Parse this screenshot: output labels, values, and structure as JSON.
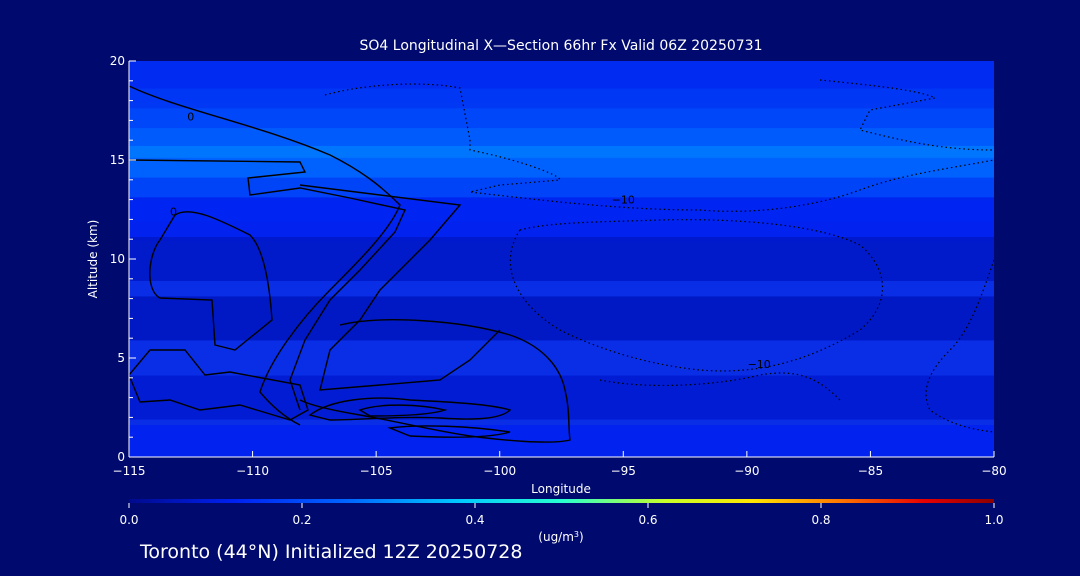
{
  "chart_data": {
    "type": "heatmap",
    "title": "SO4 Longitudinal X—Section 66hr  Fx Valid 06Z 20250731",
    "xlabel": "Longitude",
    "ylabel": "Altitude (km)",
    "xlim": [
      -115,
      -80
    ],
    "ylim": [
      0,
      20
    ],
    "x_ticks": [
      -115,
      -110,
      -105,
      -100,
      -95,
      -90,
      -85,
      -80
    ],
    "x_tick_labels": [
      "−115",
      "−110",
      "−105",
      "−100",
      "−95",
      "−90",
      "−85",
      "−80"
    ],
    "y_ticks": [
      0,
      5,
      10,
      15,
      20
    ],
    "y_tick_labels": [
      "0",
      "5",
      "10",
      "15",
      "20"
    ],
    "colorbar": {
      "min": 0.0,
      "max": 1.0,
      "ticks": [
        0.0,
        0.2,
        0.4,
        0.6,
        0.8,
        1.0
      ],
      "tick_labels": [
        "0.0",
        "0.2",
        "0.4",
        "0.6",
        "0.8",
        "1.0"
      ],
      "unit_label": "(ug/m",
      "unit_superscript": "3",
      "unit_close": ")"
    },
    "layers": [
      {
        "alt": 19.0,
        "value": 0.14
      },
      {
        "alt": 17.5,
        "value": 0.17
      },
      {
        "alt": 16.5,
        "value": 0.2
      },
      {
        "alt": 15.5,
        "value": 0.24
      },
      {
        "alt": 14.6,
        "value": 0.28
      },
      {
        "alt": 14.0,
        "value": 0.24
      },
      {
        "alt": 13.0,
        "value": 0.18
      },
      {
        "alt": 12.0,
        "value": 0.12
      },
      {
        "alt": 10.0,
        "value": 0.07
      },
      {
        "alt": 7.0,
        "value": 0.06
      },
      {
        "alt": 3.0,
        "value": 0.08
      },
      {
        "alt": 0.5,
        "value": 0.12
      }
    ],
    "contour_labels": [
      {
        "text": "0",
        "lon": -112.5,
        "alt": 17.0
      },
      {
        "text": "0",
        "lon": -113.2,
        "alt": 12.2
      },
      {
        "text": "−10",
        "lon": -95.0,
        "alt": 12.8
      },
      {
        "text": "−10",
        "lon": -89.5,
        "alt": 4.5
      }
    ],
    "grid": false,
    "colors": {
      "background": "#000a6e",
      "plot_base": "#0a2ee6",
      "contour": "#000000"
    }
  },
  "footer": {
    "text": "Toronto (44°N) Initialized 12Z 20250728"
  }
}
